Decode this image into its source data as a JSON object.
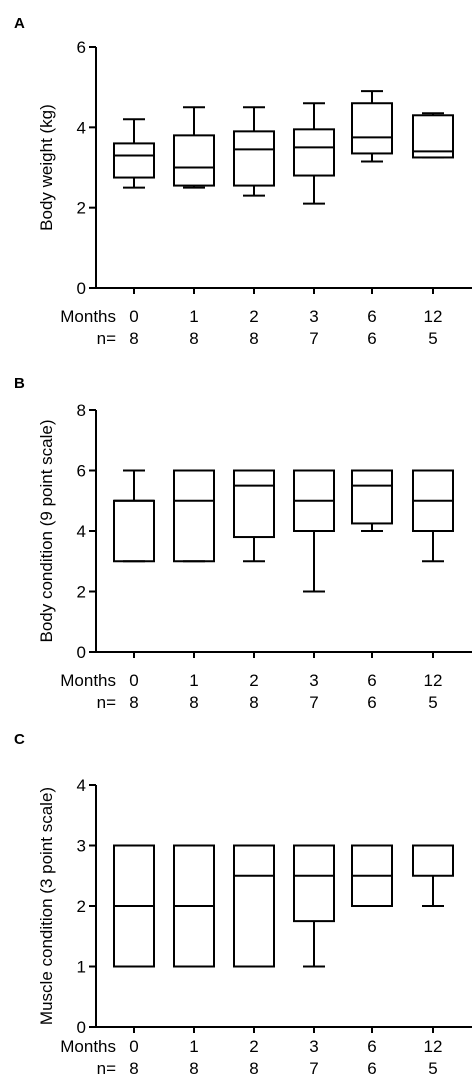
{
  "chart_data": [
    {
      "type": "box",
      "panel": "A",
      "ylabel": "Body weight (kg)",
      "ylim": [
        0,
        6
      ],
      "yticks": [
        0,
        2,
        4,
        6
      ],
      "x_row_label": "Months",
      "n_row_label": "n=",
      "categories": [
        "0",
        "1",
        "2",
        "3",
        "6",
        "12"
      ],
      "n": [
        "8",
        "8",
        "8",
        "7",
        "6",
        "5"
      ],
      "boxes": [
        {
          "min": 2.5,
          "q1": 2.75,
          "median": 3.3,
          "q3": 3.6,
          "max": 4.2
        },
        {
          "min": 2.5,
          "q1": 2.55,
          "median": 3.0,
          "q3": 3.8,
          "max": 4.5
        },
        {
          "min": 2.3,
          "q1": 2.55,
          "median": 3.45,
          "q3": 3.9,
          "max": 4.5
        },
        {
          "min": 2.1,
          "q1": 2.8,
          "median": 3.5,
          "q3": 3.95,
          "max": 4.6
        },
        {
          "min": 3.15,
          "q1": 3.35,
          "median": 3.75,
          "q3": 4.6,
          "max": 4.9
        },
        {
          "min": 3.25,
          "q1": 3.25,
          "median": 3.4,
          "q3": 4.3,
          "max": 4.35
        }
      ]
    },
    {
      "type": "box",
      "panel": "B",
      "ylabel": "Body condition (9 point scale)",
      "ylim": [
        0,
        8
      ],
      "yticks": [
        0,
        2,
        4,
        6,
        8
      ],
      "x_row_label": "Months",
      "n_row_label": "n=",
      "categories": [
        "0",
        "1",
        "2",
        "3",
        "6",
        "12"
      ],
      "n": [
        "8",
        "8",
        "8",
        "7",
        "6",
        "5"
      ],
      "boxes": [
        {
          "min": 3,
          "q1": 3,
          "median": 5,
          "q3": 5,
          "max": 6
        },
        {
          "min": 3,
          "q1": 3,
          "median": 5,
          "q3": 6,
          "max": 6
        },
        {
          "min": 3,
          "q1": 3.8,
          "median": 5.5,
          "q3": 6,
          "max": 6
        },
        {
          "min": 2,
          "q1": 4,
          "median": 5,
          "q3": 6,
          "max": 6
        },
        {
          "min": 4,
          "q1": 4.25,
          "median": 5.5,
          "q3": 6,
          "max": 6
        },
        {
          "min": 3,
          "q1": 4,
          "median": 5,
          "q3": 6,
          "max": 6
        }
      ]
    },
    {
      "type": "box",
      "panel": "C",
      "ylabel": "Muscle condition (3 point scale)",
      "ylim": [
        0,
        4
      ],
      "yticks": [
        0,
        1,
        2,
        3,
        4
      ],
      "x_row_label": "Months",
      "n_row_label": "n=",
      "categories": [
        "0",
        "1",
        "2",
        "3",
        "6",
        "12"
      ],
      "n": [
        "8",
        "8",
        "8",
        "7",
        "6",
        "5"
      ],
      "boxes": [
        {
          "min": 1,
          "q1": 1,
          "median": 2,
          "q3": 3,
          "max": 3
        },
        {
          "min": 1,
          "q1": 1,
          "median": 2,
          "q3": 3,
          "max": 3
        },
        {
          "min": 1,
          "q1": 1,
          "median": 2.5,
          "q3": 3,
          "max": 3
        },
        {
          "min": 1,
          "q1": 1.75,
          "median": 2.5,
          "q3": 3,
          "max": 3
        },
        {
          "min": 2,
          "q1": 2,
          "median": 2.5,
          "q3": 3,
          "max": 3
        },
        {
          "min": 2,
          "q1": 2.5,
          "median": 3,
          "q3": 3,
          "max": 3
        }
      ]
    }
  ]
}
